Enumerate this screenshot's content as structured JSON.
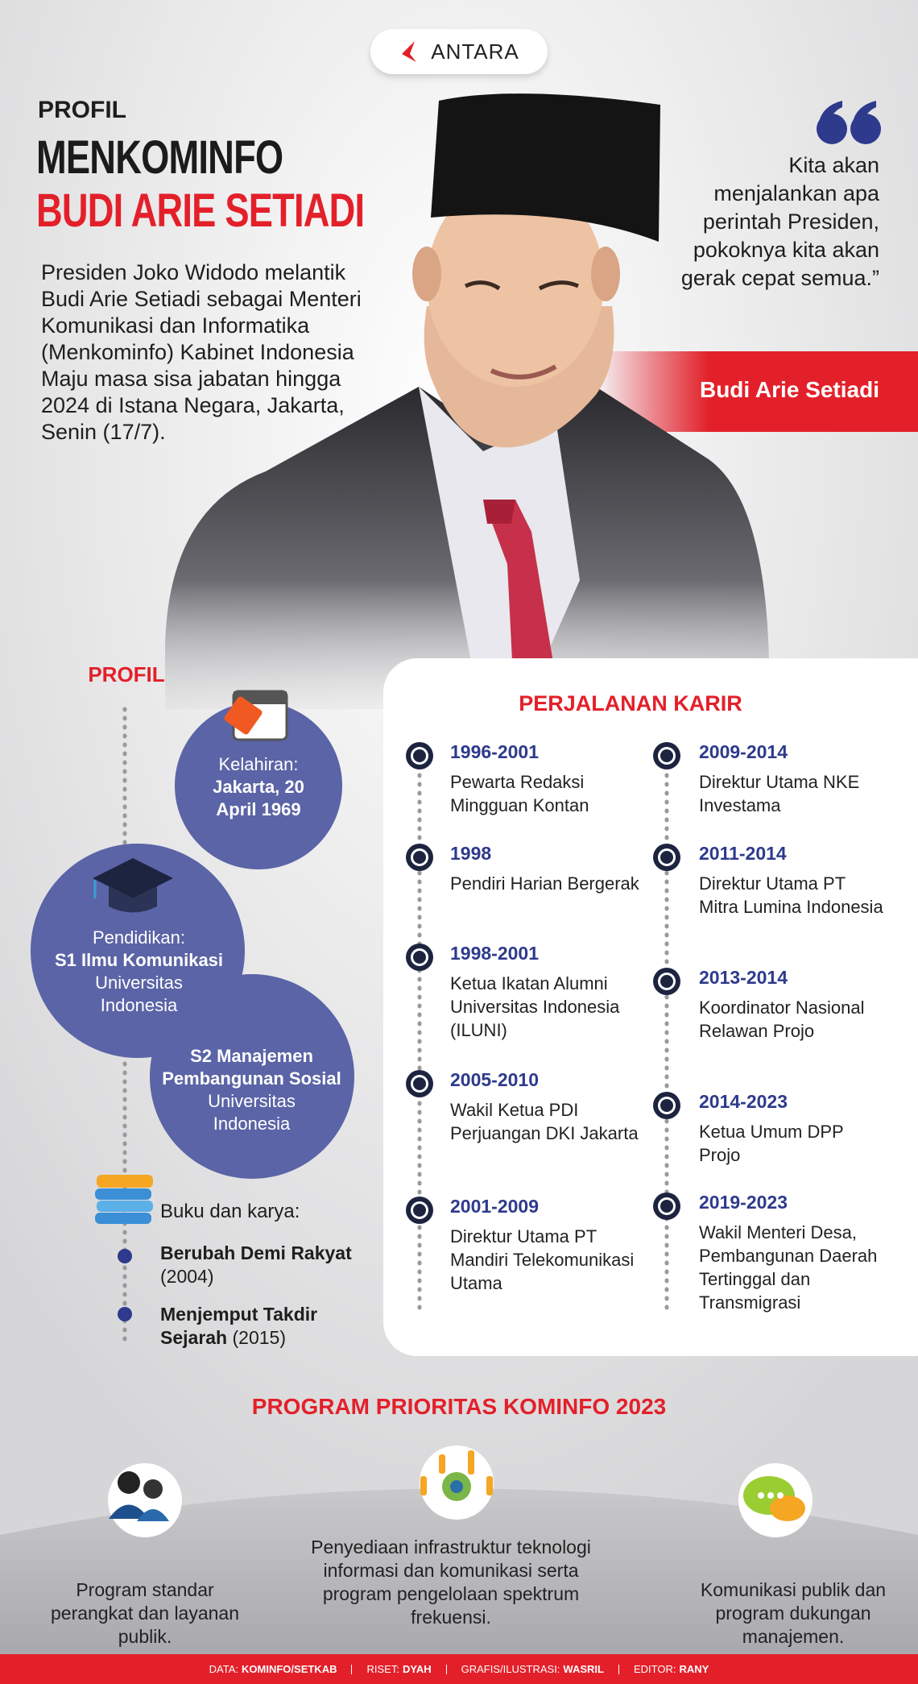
{
  "header": {
    "logo": "ANTARA",
    "kicker": "PROFIL",
    "title_line1": "MENKOMINFO",
    "title_line2": "BUDI ARIE SETIADI",
    "intro": "Presiden Joko Widodo melantik Budi Arie Setiadi sebagai Menteri Komunikasi dan Informatika (Menkominfo) Kabinet Indonesia Maju masa sisa jabatan hingga 2024 di Istana Negara, Jakarta, Senin (17/7)."
  },
  "quote": {
    "text": "Kita akan menjalankan apa perintah Presiden, pokoknya kita akan gerak cepat semua.”",
    "speaker": "Budi Arie Setiadi"
  },
  "profile": {
    "heading": "PROFIL",
    "birth": {
      "label": "Kelahiran:",
      "value": "Jakarta, 20 April 1969"
    },
    "education": [
      {
        "label": "Pendidikan:",
        "degree": "S1 Ilmu Komunikasi",
        "school": "Universitas Indonesia"
      },
      {
        "degree": "S2 Manajemen Pembangunan Sosial",
        "school": "Universitas Indonesia"
      }
    ],
    "books": {
      "heading": "Buku dan karya:",
      "items": [
        {
          "title": "Berubah Demi Rakyat",
          "year": "(2004)"
        },
        {
          "title": "Menjemput Takdir Sejarah",
          "year": "(2015)"
        }
      ]
    }
  },
  "career": {
    "heading": "PERJALANAN KARIR",
    "items": [
      {
        "years": "1996-2001",
        "role": "Pewarta Redaksi Mingguan Kontan"
      },
      {
        "years": "1998",
        "role": "Pendiri Harian Bergerak"
      },
      {
        "years": "1998-2001",
        "role": "Ketua Ikatan Alumni Universitas Indonesia (ILUNI)"
      },
      {
        "years": "2005-2010",
        "role": "Wakil Ketua PDI Perjuangan DKI Jakarta"
      },
      {
        "years": "2001-2009",
        "role": "Direktur Utama PT Mandiri Telekomunikasi Utama"
      },
      {
        "years": "2009-2014",
        "role": "Direktur Utama NKE Investama"
      },
      {
        "years": "2011-2014",
        "role": "Direktur Utama PT Mitra Lumina Indonesia"
      },
      {
        "years": "2013-2014",
        "role": "Koordinator Nasional Relawan Projo"
      },
      {
        "years": "2014-2023",
        "role": "Ketua Umum DPP Projo"
      },
      {
        "years": "2019-2023",
        "role": "Wakil Menteri Desa, Pembangunan Daerah Tertinggal dan Transmigrasi"
      }
    ]
  },
  "programs": {
    "heading": "PROGRAM PRIORITAS KOMINFO 2023",
    "items": [
      "Program standar perangkat dan layanan publik.",
      "Penyediaan infrastruktur teknologi informasi dan komunikasi serta program pengelolaan spektrum frekuensi.",
      "Komunikasi publik dan program dukungan manajemen."
    ]
  },
  "credits": [
    {
      "label": "DATA:",
      "value": "KOMINFO/SETKAB"
    },
    {
      "label": "RISET:",
      "value": "DYAH"
    },
    {
      "label": "GRAFIS/ILUSTRASI:",
      "value": "WASRIL"
    },
    {
      "label": "EDITOR:",
      "value": "RANY"
    }
  ]
}
